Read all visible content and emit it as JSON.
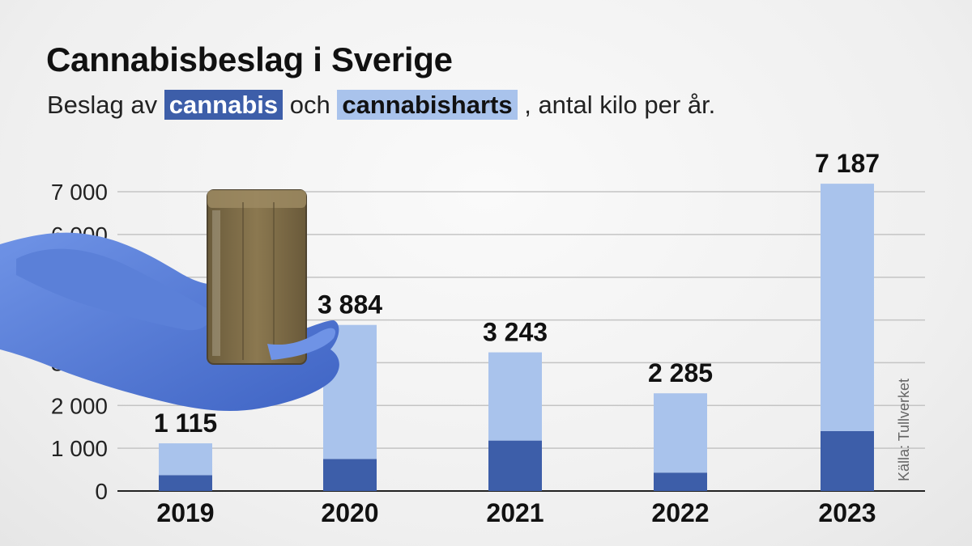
{
  "header": {
    "title": "Cannabisbeslag i Sverige",
    "subtitle_prefix": "Beslag av",
    "subtitle_series1": "cannabis",
    "subtitle_mid": "och",
    "subtitle_series2": "cannabisharts",
    "subtitle_suffix": ", antal kilo per år."
  },
  "source": "Källa: Tullverket",
  "colors": {
    "cannabis": "#3d5ea9",
    "cannabisharts": "#a9c3ec",
    "grid": "#c4c4c4",
    "axis": "#222222"
  },
  "chart_data": {
    "type": "bar",
    "stacked": true,
    "categories": [
      "2019",
      "2020",
      "2021",
      "2022",
      "2023"
    ],
    "series": [
      {
        "name": "cannabis",
        "values": [
          370,
          750,
          1180,
          430,
          1400
        ]
      },
      {
        "name": "cannabisharts",
        "values": [
          745,
          3134,
          2063,
          1855,
          5787
        ]
      }
    ],
    "totals": [
      1115,
      3884,
      3243,
      2285,
      7187
    ],
    "total_labels": [
      "1 115",
      "3 884",
      "3 243",
      "2 285",
      "7 187"
    ],
    "y_ticks": [
      0,
      1000,
      2000,
      3000,
      4000,
      5000,
      6000,
      7000
    ],
    "y_tick_labels": [
      "0",
      "1 000",
      "2 000",
      "3 000",
      "4 000",
      "5 000",
      "6 000",
      "7 000"
    ],
    "ylim": [
      0,
      7000
    ],
    "grid": true,
    "xlabel": "",
    "ylabel": ""
  }
}
